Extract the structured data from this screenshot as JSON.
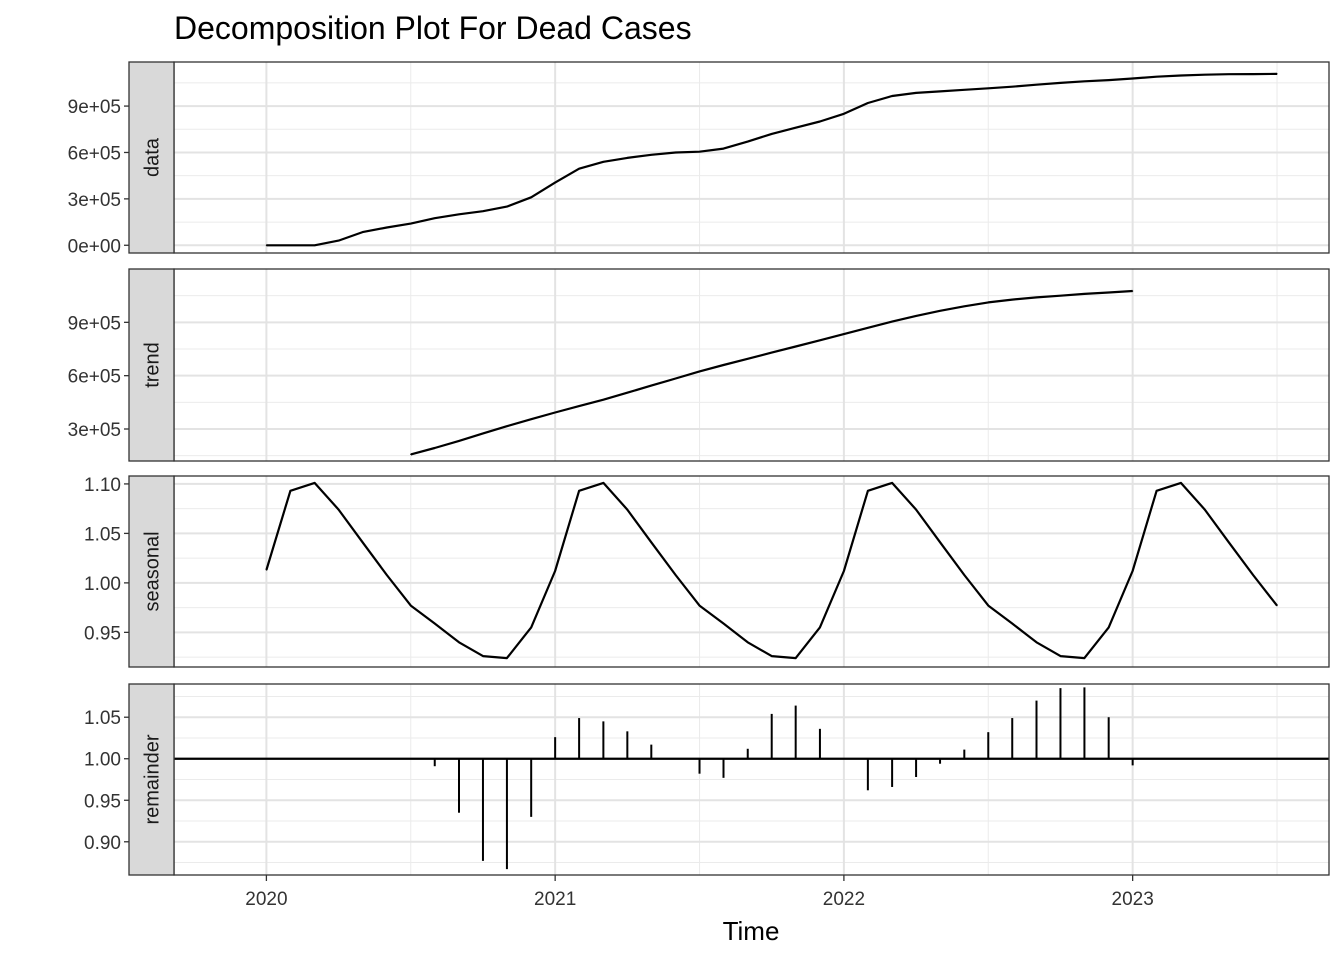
{
  "title": "Decomposition Plot For Dead Cases",
  "chart_data": {
    "type": "line",
    "title": "Decomposition Plot For Dead Cases",
    "xlabel": "Time",
    "ylabel": "",
    "grid": true,
    "x_ticks": [
      "2020",
      "2021",
      "2022",
      "2023"
    ],
    "x_tick_values": [
      2020,
      2021,
      2022,
      2023
    ],
    "xlim": [
      2019.68,
      2023.68
    ],
    "panels": [
      {
        "name": "data",
        "type": "line",
        "ylim": [
          -50000,
          1185000
        ],
        "y_ticks": [
          "0e+00",
          "3e+05",
          "6e+05",
          "9e+05"
        ],
        "y_tick_values": [
          0,
          300000,
          600000,
          900000
        ],
        "x": [
          2020.0,
          2020.083,
          2020.167,
          2020.25,
          2020.333,
          2020.417,
          2020.5,
          2020.583,
          2020.667,
          2020.75,
          2020.833,
          2020.917,
          2021.0,
          2021.083,
          2021.167,
          2021.25,
          2021.333,
          2021.417,
          2021.5,
          2021.583,
          2021.667,
          2021.75,
          2021.833,
          2021.917,
          2022.0,
          2022.083,
          2022.167,
          2022.25,
          2022.333,
          2022.417,
          2022.5,
          2022.583,
          2022.667,
          2022.75,
          2022.833,
          2022.917,
          2023.0,
          2023.083,
          2023.167,
          2023.25,
          2023.333,
          2023.417,
          2023.5
        ],
        "values": [
          0,
          0,
          0,
          30000,
          85000,
          115000,
          140000,
          175000,
          200000,
          220000,
          250000,
          310000,
          405000,
          495000,
          540000,
          565000,
          585000,
          600000,
          605000,
          625000,
          670000,
          720000,
          760000,
          800000,
          850000,
          920000,
          965000,
          985000,
          995000,
          1005000,
          1015000,
          1025000,
          1038000,
          1050000,
          1060000,
          1068000,
          1078000,
          1090000,
          1098000,
          1103000,
          1106000,
          1107000,
          1108000
        ]
      },
      {
        "name": "trend",
        "type": "line",
        "ylim": [
          120000,
          1200000
        ],
        "y_ticks": [
          "3e+05",
          "6e+05",
          "9e+05"
        ],
        "y_tick_values": [
          300000,
          600000,
          900000
        ],
        "x": [
          2020.5,
          2020.583,
          2020.667,
          2020.75,
          2020.833,
          2020.917,
          2021.0,
          2021.083,
          2021.167,
          2021.25,
          2021.333,
          2021.417,
          2021.5,
          2021.583,
          2021.667,
          2021.75,
          2021.833,
          2021.917,
          2022.0,
          2022.083,
          2022.167,
          2022.25,
          2022.333,
          2022.417,
          2022.5,
          2022.583,
          2022.667,
          2022.75,
          2022.833,
          2022.917,
          2023.0
        ],
        "values": [
          157000,
          193000,
          233000,
          275000,
          316000,
          355000,
          393000,
          429000,
          465000,
          504000,
          544000,
          584000,
          624000,
          660000,
          695000,
          730000,
          764000,
          799000,
          834000,
          869000,
          904000,
          936000,
          965000,
          990000,
          1012000,
          1028000,
          1040000,
          1050000,
          1060000,
          1068000,
          1076000
        ]
      },
      {
        "name": "seasonal",
        "type": "line",
        "ylim": [
          0.915,
          1.108
        ],
        "y_ticks": [
          "0.95",
          "1.00",
          "1.05",
          "1.10"
        ],
        "y_tick_values": [
          0.95,
          1.0,
          1.05,
          1.1
        ],
        "x": [
          2020.0,
          2020.083,
          2020.167,
          2020.25,
          2020.333,
          2020.417,
          2020.5,
          2020.583,
          2020.667,
          2020.75,
          2020.833,
          2020.917,
          2021.0,
          2021.083,
          2021.167,
          2021.25,
          2021.333,
          2021.417,
          2021.5,
          2021.583,
          2021.667,
          2021.75,
          2021.833,
          2021.917,
          2022.0,
          2022.083,
          2022.167,
          2022.25,
          2022.333,
          2022.417,
          2022.5,
          2022.583,
          2022.667,
          2022.75,
          2022.833,
          2022.917,
          2023.0,
          2023.083,
          2023.167,
          2023.25,
          2023.333,
          2023.417,
          2023.5
        ],
        "values": [
          1.013,
          1.093,
          1.101,
          1.074,
          1.041,
          1.008,
          0.977,
          0.959,
          0.94,
          0.926,
          0.924,
          0.955,
          1.012,
          1.093,
          1.101,
          1.074,
          1.041,
          1.008,
          0.977,
          0.959,
          0.94,
          0.926,
          0.924,
          0.955,
          1.012,
          1.093,
          1.101,
          1.074,
          1.041,
          1.008,
          0.977,
          0.959,
          0.94,
          0.926,
          0.924,
          0.955,
          1.012,
          1.093,
          1.101,
          1.074,
          1.041,
          1.008,
          0.977
        ]
      },
      {
        "name": "remainder",
        "type": "bar",
        "baseline": 1.0,
        "ylim": [
          0.86,
          1.09
        ],
        "y_ticks": [
          "0.90",
          "0.95",
          "1.00",
          "1.05"
        ],
        "y_tick_values": [
          0.9,
          0.95,
          1.0,
          1.05
        ],
        "x": [
          2020.583,
          2020.667,
          2020.75,
          2020.833,
          2020.917,
          2021.0,
          2021.083,
          2021.167,
          2021.25,
          2021.333,
          2021.5,
          2021.583,
          2021.667,
          2021.75,
          2021.833,
          2021.917,
          2022.083,
          2022.167,
          2022.25,
          2022.333,
          2022.417,
          2022.5,
          2022.583,
          2022.667,
          2022.75,
          2022.833,
          2022.917,
          2023.0
        ],
        "values": [
          0.991,
          0.935,
          0.877,
          0.867,
          0.93,
          1.026,
          1.049,
          1.045,
          1.033,
          1.017,
          0.982,
          0.977,
          1.012,
          1.054,
          1.064,
          1.036,
          0.962,
          0.966,
          0.978,
          0.994,
          1.011,
          1.032,
          1.049,
          1.07,
          1.085,
          1.086,
          1.05,
          0.992
        ]
      }
    ]
  }
}
